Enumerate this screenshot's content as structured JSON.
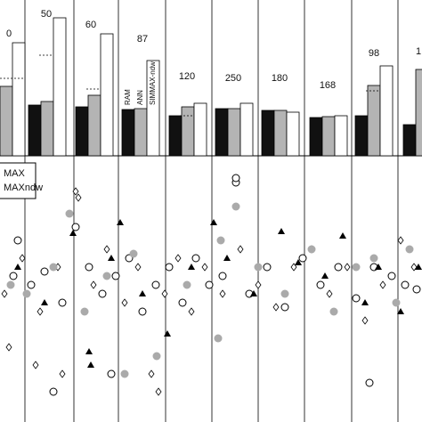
{
  "chart_data": [
    {
      "type": "bar",
      "column_labels": [
        "0",
        "50",
        "60",
        "87",
        "120",
        "250",
        "180",
        "168",
        "98",
        "1"
      ],
      "bar_labels": [
        "RAM",
        "ANN",
        "SIMMAX-ndw"
      ],
      "series": [
        {
          "color": "#111111",
          "values": [
            null,
            57,
            55,
            52,
            45,
            53,
            51,
            43,
            45,
            35
          ]
        },
        {
          "color": "#b4b4b4",
          "values": [
            78,
            61,
            68,
            53,
            55,
            53,
            51,
            44,
            79,
            97
          ]
        },
        {
          "color": "#ffffff",
          "values": [
            127,
            155,
            137,
            107,
            59,
            59,
            49,
            45,
            101,
            null
          ]
        }
      ],
      "dashed": [
        87,
        113,
        75,
        null,
        45,
        null,
        null,
        null,
        73,
        null
      ],
      "ylim": [
        0,
        175
      ]
    },
    {
      "type": "scatter",
      "legend": [
        "MAX",
        "MAXndw"
      ],
      "xlim": [
        0,
        474
      ],
      "ylim": [
        474,
        180
      ],
      "series": [
        {
          "marker": "circle-open",
          "color": "#000000",
          "x": [
            20,
            35,
            50,
            70,
            85,
            100,
            115,
            130,
            145,
            160,
            175,
            190,
            205,
            220,
            235,
            250,
            265,
            265,
            280,
            300,
            320,
            340,
            360,
            380,
            400,
            415,
            420,
            440,
            455,
            468,
            15,
            60,
            125
          ],
          "values": [
            270,
            320,
            305,
            340,
            255,
            300,
            330,
            310,
            290,
            350,
            320,
            300,
            340,
            290,
            320,
            310,
            205,
            200,
            330,
            300,
            345,
            290,
            320,
            300,
            335,
            430,
            300,
            310,
            320,
            325,
            310,
            440,
            420
          ]
        },
        {
          "marker": "diamond-open",
          "color": "#000000",
          "x": [
            5,
            25,
            45,
            65,
            85,
            88,
            105,
            120,
            140,
            155,
            170,
            185,
            200,
            215,
            230,
            250,
            270,
            290,
            310,
            330,
            350,
            370,
            390,
            410,
            430,
            450,
            465,
            10,
            70,
            178,
            40
          ],
          "values": [
            330,
            290,
            350,
            300,
            215,
            222,
            320,
            280,
            340,
            300,
            420,
            330,
            290,
            350,
            300,
            330,
            280,
            320,
            345,
            300,
            280,
            330,
            300,
            360,
            320,
            270,
            300,
            390,
            420,
            440,
            410
          ]
        },
        {
          "marker": "circle-filled",
          "color": "#aaaaaa",
          "x": [
            30,
            60,
            78,
            95,
            120,
            150,
            176,
            210,
            245,
            248,
            265,
            290,
            320,
            350,
            375,
            400,
            420,
            445,
            460,
            12,
            140
          ],
          "values": [
            330,
            300,
            240,
            350,
            310,
            285,
            400,
            320,
            380,
            270,
            232,
            300,
            330,
            280,
            350,
            300,
            290,
            340,
            280,
            320,
            420
          ]
        },
        {
          "marker": "triangle",
          "color": "#000000",
          "x": [
            20,
            50,
            82,
            102,
            125,
            135,
            160,
            188,
            215,
            240,
            255,
            285,
            316,
            335,
            365,
            385,
            410,
            425,
            450,
            470,
            100
          ],
          "values": [
            300,
            340,
            262,
            410,
            290,
            250,
            330,
            375,
            300,
            250,
            290,
            330,
            260,
            295,
            310,
            265,
            340,
            300,
            350,
            300,
            395
          ]
        }
      ]
    }
  ]
}
